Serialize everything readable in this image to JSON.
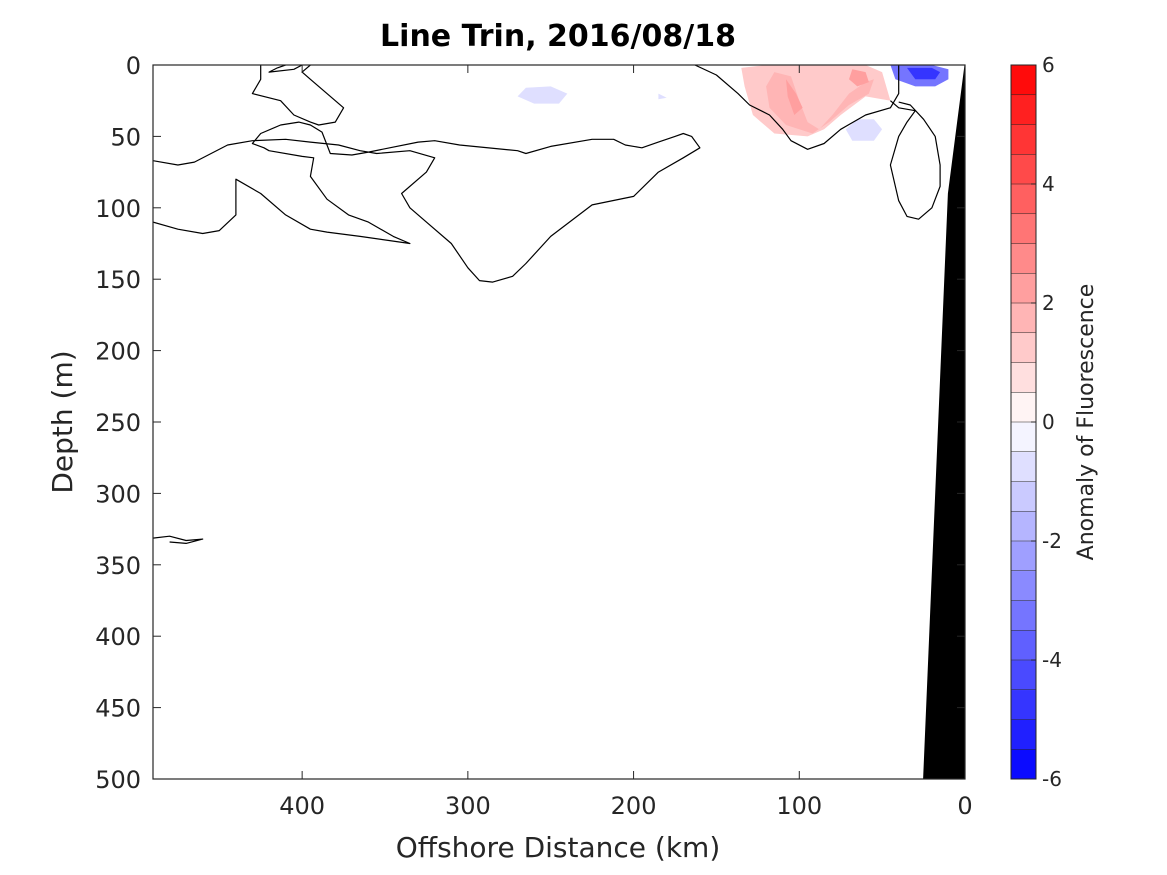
{
  "chart_data": {
    "type": "heatmap",
    "title": "Line Trin, 2016/08/18",
    "xlabel": "Offshore Distance (km)",
    "ylabel": "Depth (m)",
    "xlim": [
      490,
      0
    ],
    "ylim": [
      0,
      500
    ],
    "x_reversed": true,
    "y_reversed": true,
    "x_ticks": [
      400,
      300,
      200,
      100,
      0
    ],
    "y_ticks": [
      0,
      50,
      100,
      150,
      200,
      250,
      300,
      350,
      400,
      450,
      500
    ],
    "grid": false,
    "colorbar": {
      "label": "Anomaly of Fluorescence",
      "range": [
        -6,
        6
      ],
      "ticks": [
        6,
        4,
        2,
        0,
        -2,
        -4,
        -6
      ],
      "levels": 24,
      "colormap": "blue-white-red",
      "neg_color": "#0000ff",
      "pos_color": "#ff0000",
      "mid_color": "#ffffff"
    },
    "bathymetry": {
      "color": "#000000",
      "points": [
        [
          0,
          0
        ],
        [
          10,
          90
        ],
        [
          25,
          500
        ],
        [
          0,
          500
        ]
      ]
    },
    "anomaly_patches": [
      {
        "value": 1.0,
        "points": [
          [
            135,
            2
          ],
          [
            120,
            0
          ],
          [
            80,
            0
          ],
          [
            60,
            0
          ],
          [
            50,
            5
          ],
          [
            45,
            25
          ],
          [
            60,
            22
          ],
          [
            75,
            35
          ],
          [
            85,
            45
          ],
          [
            95,
            50
          ],
          [
            115,
            48
          ],
          [
            128,
            35
          ],
          [
            133,
            15
          ]
        ]
      },
      {
        "value": 1.5,
        "points": [
          [
            115,
            5
          ],
          [
            105,
            8
          ],
          [
            100,
            25
          ],
          [
            95,
            40
          ],
          [
            88,
            45
          ],
          [
            80,
            35
          ],
          [
            70,
            20
          ],
          [
            60,
            12
          ],
          [
            55,
            10
          ],
          [
            58,
            20
          ],
          [
            70,
            28
          ],
          [
            82,
            40
          ],
          [
            92,
            48
          ],
          [
            108,
            42
          ],
          [
            118,
            30
          ],
          [
            120,
            15
          ]
        ]
      },
      {
        "value": 2.0,
        "points": [
          [
            108,
            10
          ],
          [
            102,
            20
          ],
          [
            98,
            30
          ],
          [
            103,
            35
          ],
          [
            107,
            22
          ]
        ]
      },
      {
        "value": 2.0,
        "points": [
          [
            68,
            3
          ],
          [
            60,
            5
          ],
          [
            58,
            12
          ],
          [
            65,
            15
          ],
          [
            70,
            10
          ]
        ]
      },
      {
        "value": -3.5,
        "points": [
          [
            45,
            0
          ],
          [
            20,
            0
          ],
          [
            10,
            3
          ],
          [
            10,
            10
          ],
          [
            18,
            15
          ],
          [
            30,
            15
          ],
          [
            42,
            10
          ]
        ]
      },
      {
        "value": -5.0,
        "points": [
          [
            35,
            2
          ],
          [
            20,
            2
          ],
          [
            15,
            5
          ],
          [
            18,
            10
          ],
          [
            30,
            10
          ]
        ]
      },
      {
        "value": -0.8,
        "points": [
          [
            250,
            15
          ],
          [
            240,
            20
          ],
          [
            245,
            27
          ],
          [
            260,
            27
          ],
          [
            270,
            22
          ],
          [
            265,
            16
          ]
        ]
      },
      {
        "value": -0.8,
        "points": [
          [
            65,
            38
          ],
          [
            55,
            38
          ],
          [
            50,
            45
          ],
          [
            55,
            53
          ],
          [
            68,
            53
          ],
          [
            72,
            45
          ]
        ]
      },
      {
        "value": -0.6,
        "points": [
          [
            185,
            20
          ],
          [
            180,
            23
          ],
          [
            185,
            24
          ]
        ]
      }
    ],
    "zero_contours": [
      {
        "closed": false,
        "points": [
          [
            163,
            0
          ],
          [
            150,
            7
          ],
          [
            137,
            20
          ],
          [
            130,
            28
          ],
          [
            118,
            35
          ],
          [
            110,
            45
          ],
          [
            105,
            53
          ],
          [
            95,
            59
          ],
          [
            85,
            55
          ],
          [
            75,
            45
          ],
          [
            60,
            35
          ],
          [
            45,
            30
          ],
          [
            40,
            20
          ],
          [
            40,
            5
          ],
          [
            40,
            0
          ]
        ]
      },
      {
        "closed": false,
        "points": [
          [
            490,
            110
          ],
          [
            475,
            115
          ],
          [
            460,
            118
          ],
          [
            450,
            116
          ],
          [
            440,
            105
          ],
          [
            440,
            80
          ],
          [
            425,
            90
          ],
          [
            410,
            105
          ],
          [
            395,
            115
          ],
          [
            385,
            117
          ],
          [
            365,
            120
          ],
          [
            335,
            125
          ],
          [
            345,
            120
          ],
          [
            360,
            110
          ],
          [
            372,
            105
          ],
          [
            385,
            94
          ],
          [
            395,
            78
          ],
          [
            393,
            65
          ],
          [
            400,
            64
          ],
          [
            420,
            60
          ],
          [
            423,
            58
          ],
          [
            430,
            55
          ],
          [
            425,
            48
          ],
          [
            413,
            42
          ],
          [
            402,
            40
          ],
          [
            395,
            42
          ],
          [
            388,
            47
          ],
          [
            383,
            62
          ],
          [
            370,
            63
          ],
          [
            360,
            61
          ],
          [
            330,
            54
          ],
          [
            320,
            53
          ],
          [
            305,
            56
          ],
          [
            270,
            60
          ],
          [
            265,
            62
          ],
          [
            250,
            57
          ],
          [
            225,
            52
          ],
          [
            212,
            52
          ],
          [
            205,
            56
          ],
          [
            195,
            58
          ],
          [
            185,
            54
          ],
          [
            175,
            50
          ],
          [
            170,
            48
          ],
          [
            165,
            50
          ],
          [
            160,
            58
          ],
          [
            170,
            65
          ],
          [
            185,
            75
          ],
          [
            200,
            92
          ],
          [
            225,
            98
          ],
          [
            250,
            120
          ],
          [
            265,
            139
          ],
          [
            273,
            148
          ],
          [
            285,
            152
          ],
          [
            293,
            151
          ],
          [
            300,
            142
          ],
          [
            310,
            125
          ],
          [
            325,
            110
          ],
          [
            335,
            100
          ],
          [
            340,
            90
          ],
          [
            325,
            75
          ],
          [
            320,
            65
          ],
          [
            335,
            60
          ],
          [
            355,
            62
          ],
          [
            365,
            60
          ],
          [
            378,
            56
          ],
          [
            395,
            54
          ],
          [
            410,
            52
          ],
          [
            430,
            53
          ],
          [
            445,
            56
          ],
          [
            465,
            68
          ],
          [
            475,
            70
          ],
          [
            490,
            67
          ]
        ]
      },
      {
        "closed": false,
        "points": [
          [
            400,
            0
          ],
          [
            405,
            3
          ],
          [
            420,
            5
          ],
          [
            415,
            2
          ],
          [
            410,
            0
          ]
        ]
      },
      {
        "closed": false,
        "points": [
          [
            425,
            0
          ],
          [
            425,
            10
          ],
          [
            430,
            20
          ],
          [
            413,
            25
          ],
          [
            405,
            35
          ],
          [
            395,
            40
          ],
          [
            390,
            42
          ],
          [
            380,
            40
          ],
          [
            375,
            30
          ],
          [
            385,
            20
          ],
          [
            395,
            10
          ],
          [
            400,
            5
          ],
          [
            395,
            0
          ]
        ]
      },
      {
        "closed": false,
        "points": [
          [
            495,
            332
          ],
          [
            480,
            330
          ],
          [
            470,
            333
          ],
          [
            460,
            332
          ],
          [
            470,
            335
          ],
          [
            480,
            334
          ]
        ]
      },
      {
        "closed": false,
        "points": [
          [
            45,
            25
          ],
          [
            40,
            30
          ],
          [
            30,
            32
          ],
          [
            35,
            40
          ],
          [
            40,
            50
          ],
          [
            45,
            70
          ],
          [
            40,
            95
          ],
          [
            35,
            106
          ],
          [
            28,
            108
          ],
          [
            20,
            100
          ],
          [
            15,
            85
          ],
          [
            15,
            70
          ],
          [
            18,
            50
          ],
          [
            25,
            38
          ],
          [
            33,
            28
          ],
          [
            40,
            26
          ]
        ]
      }
    ]
  }
}
